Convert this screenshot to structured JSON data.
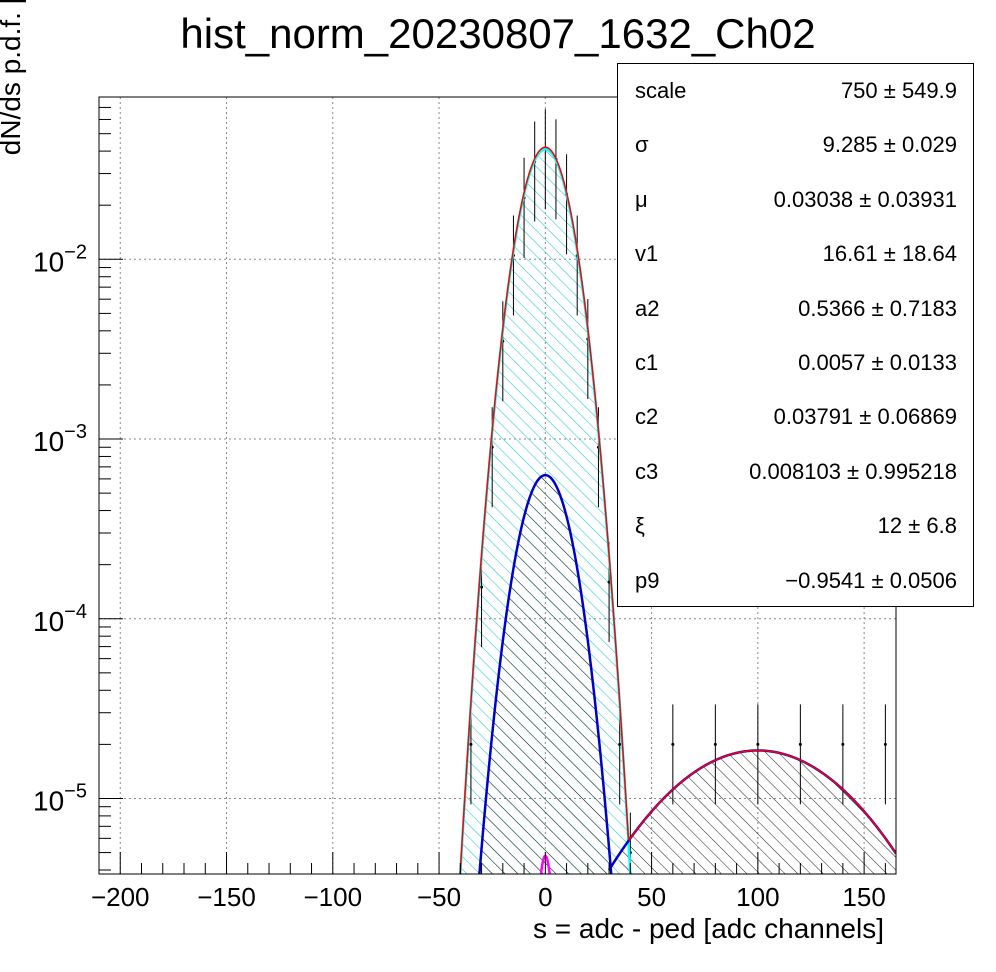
{
  "chart_data": {
    "type": "histogram-fit",
    "title": "hist_norm_20230807_1632_Ch02",
    "xlabel": "s = adc - ped [adc channels]",
    "ylabel": "dN/ds p.d.f. [a.u.]",
    "xlim": [
      -210,
      165
    ],
    "ylim": [
      3.8e-06,
      0.08
    ],
    "yscale": "log",
    "grid": true,
    "x_ticks": [
      {
        "value": -200,
        "label": "−200"
      },
      {
        "value": -150,
        "label": "−150"
      },
      {
        "value": -100,
        "label": "−100"
      },
      {
        "value": -50,
        "label": "−50"
      },
      {
        "value": 0,
        "label": "0"
      },
      {
        "value": 50,
        "label": "50"
      },
      {
        "value": 100,
        "label": "100"
      },
      {
        "value": 150,
        "label": "150"
      }
    ],
    "y_ticks": [
      {
        "value": 1e-05,
        "base": "10",
        "exp": "−5"
      },
      {
        "value": 0.0001,
        "base": "10",
        "exp": "−4"
      },
      {
        "value": 0.001,
        "base": "10",
        "exp": "−3"
      },
      {
        "value": 0.01,
        "base": "10",
        "exp": "−2"
      }
    ],
    "series": [
      {
        "role": "data-histogram",
        "color": "#000000",
        "x": [
          -35,
          -30,
          -25,
          -20,
          -15,
          -10,
          -5,
          0,
          5,
          10,
          15,
          20,
          25,
          30,
          35,
          40,
          60,
          80,
          100,
          120,
          140,
          160
        ],
        "y": [
          2e-05,
          0.00015,
          0.0009,
          0.0035,
          0.0105,
          0.022,
          0.035,
          0.041,
          0.036,
          0.023,
          0.0105,
          0.0036,
          0.0009,
          0.00016,
          2e-05,
          5e-06,
          2e-05,
          2e-05,
          2e-05,
          2e-05,
          2e-05,
          2e-05
        ]
      },
      {
        "role": "total-fit",
        "color": "#ff0000",
        "peak_x": 0,
        "peak_y": 0.042,
        "sigma": 9.285
      },
      {
        "role": "pedestal-component",
        "color": "#00ffff",
        "fill": "hatched",
        "peak_x": 0,
        "peak_y": 0.041,
        "sigma": 9.285
      },
      {
        "role": "noise-component",
        "color": "#0000cc",
        "fill": "hatched",
        "peak_x": 0,
        "peak_y": 0.00063,
        "sigma": 9.7
      },
      {
        "role": "signal-component",
        "color": "#0000cc",
        "fill": "hatched",
        "peak_x": 100,
        "peak_y": 1.85e-05,
        "sigma": 40
      },
      {
        "role": "small-component",
        "color": "#ff00ff",
        "peak_x": 0,
        "peak_y": 4.8e-06,
        "sigma": 3
      }
    ]
  },
  "stats": [
    {
      "name": "scale",
      "value": "750 ± 549.9"
    },
    {
      "name": "σ",
      "value": "9.285 ± 0.029"
    },
    {
      "name": "μ",
      "value": "0.03038 ± 0.03931"
    },
    {
      "name": "v1",
      "value": "16.61 ± 18.64"
    },
    {
      "name": "a2",
      "value": "0.5366 ± 0.7183"
    },
    {
      "name": "c1",
      "value": "0.0057 ± 0.0133"
    },
    {
      "name": "c2",
      "value": "0.03791 ± 0.06869"
    },
    {
      "name": "c3",
      "value": "0.008103 ± 0.995218"
    },
    {
      "name": "ξ",
      "value": "12 ± 6.8"
    },
    {
      "name": "p9",
      "value": "−0.9541 ± 0.0506"
    }
  ]
}
